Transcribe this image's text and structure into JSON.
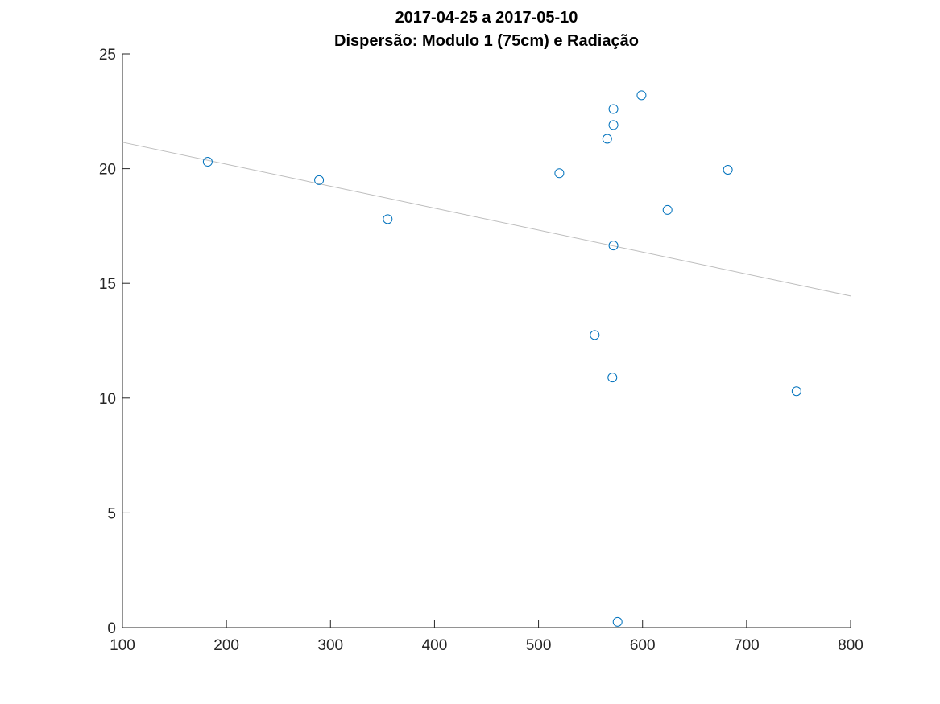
{
  "chart_data": {
    "type": "scatter",
    "title": "2017-04-25 a 2017-05-10",
    "subtitle": "Dispersão: Modulo 1 (75cm) e Radiação",
    "xlabel": "",
    "ylabel": "",
    "xlim": [
      100,
      800
    ],
    "ylim": [
      0,
      25
    ],
    "x_ticks": [
      100,
      200,
      300,
      400,
      500,
      600,
      700,
      800
    ],
    "y_ticks": [
      0,
      5,
      10,
      15,
      20,
      25
    ],
    "grid": false,
    "legend": "none",
    "series": [
      {
        "marker": "open-circle",
        "color": "#0072BD",
        "points": [
          {
            "x": 182,
            "y": 20.3
          },
          {
            "x": 289,
            "y": 19.5
          },
          {
            "x": 355,
            "y": 17.8
          },
          {
            "x": 520,
            "y": 19.8
          },
          {
            "x": 554,
            "y": 12.75
          },
          {
            "x": 566,
            "y": 21.3
          },
          {
            "x": 571,
            "y": 10.9
          },
          {
            "x": 572,
            "y": 22.6
          },
          {
            "x": 572,
            "y": 21.9
          },
          {
            "x": 572,
            "y": 16.65
          },
          {
            "x": 576,
            "y": 0.25
          },
          {
            "x": 599,
            "y": 23.2
          },
          {
            "x": 624,
            "y": 18.2
          },
          {
            "x": 682,
            "y": 19.95
          },
          {
            "x": 748,
            "y": 10.3
          }
        ]
      }
    ],
    "trendline": {
      "type": "linear",
      "color": "#bdbdbd",
      "points": [
        {
          "x": 100,
          "y": 21.15
        },
        {
          "x": 800,
          "y": 14.45
        }
      ]
    }
  }
}
